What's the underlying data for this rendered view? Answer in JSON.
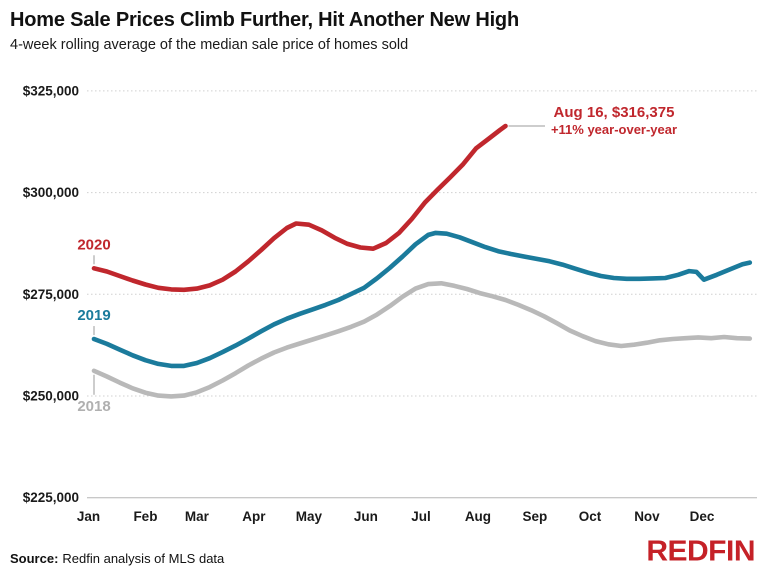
{
  "chart_data": {
    "type": "line",
    "title": "Home Sale Prices Climb Further, Hit Another New High",
    "subtitle": "4-week rolling average of the median sale price of homes sold",
    "x_unit": "day_of_year",
    "x_axis": {
      "labels": [
        "Jan",
        "Feb",
        "Mar",
        "Apr",
        "May",
        "Jun",
        "Jul",
        "Aug",
        "Sep",
        "Oct",
        "Nov",
        "Dec"
      ]
    },
    "y_axis": {
      "min": 225000,
      "max": 325000,
      "baseline": 225000,
      "ticks": [
        {
          "value": 225000,
          "label": "$225,000"
        },
        {
          "value": 250000,
          "label": "$250,000"
        },
        {
          "value": 275000,
          "label": "$275,000"
        },
        {
          "value": 300000,
          "label": "$300,000"
        },
        {
          "value": 325000,
          "label": "$325,000"
        }
      ],
      "grid_color": "#d0d0d0",
      "axis_color": "#b5b5b5"
    },
    "legend_position": "inline-left-of-lines",
    "annotation": {
      "line1": "Aug 16, $316,375",
      "line2": "+11% year-over-year",
      "color": "#c0272d"
    },
    "series": [
      {
        "name": "2020",
        "color": "#c0272d",
        "label_color": "#c0272d",
        "label_position": "above",
        "points": [
          [
            4,
            281400
          ],
          [
            11,
            280600
          ],
          [
            18,
            279500
          ],
          [
            25,
            278400
          ],
          [
            32,
            277400
          ],
          [
            39,
            276600
          ],
          [
            46,
            276200
          ],
          [
            53,
            276100
          ],
          [
            60,
            276400
          ],
          [
            67,
            277200
          ],
          [
            74,
            278600
          ],
          [
            81,
            280600
          ],
          [
            88,
            283100
          ],
          [
            95,
            285900
          ],
          [
            102,
            288800
          ],
          [
            109,
            291300
          ],
          [
            114,
            292400
          ],
          [
            121,
            292100
          ],
          [
            128,
            290700
          ],
          [
            135,
            288900
          ],
          [
            142,
            287400
          ],
          [
            149,
            286500
          ],
          [
            156,
            286200
          ],
          [
            163,
            287600
          ],
          [
            170,
            290100
          ],
          [
            177,
            293500
          ],
          [
            184,
            297500
          ],
          [
            191,
            300700
          ],
          [
            198,
            303800
          ],
          [
            205,
            307000
          ],
          [
            212,
            310900
          ],
          [
            219,
            313300
          ],
          [
            225,
            315400
          ],
          [
            228,
            316375
          ]
        ]
      },
      {
        "name": "2019",
        "color": "#1b7b9c",
        "label_color": "#1b7b9c",
        "label_position": "above",
        "points": [
          [
            4,
            264000
          ],
          [
            11,
            262800
          ],
          [
            18,
            261400
          ],
          [
            25,
            260000
          ],
          [
            32,
            258800
          ],
          [
            39,
            257900
          ],
          [
            46,
            257400
          ],
          [
            53,
            257400
          ],
          [
            60,
            258100
          ],
          [
            67,
            259300
          ],
          [
            74,
            260800
          ],
          [
            81,
            262400
          ],
          [
            88,
            264100
          ],
          [
            95,
            265900
          ],
          [
            102,
            267600
          ],
          [
            109,
            269000
          ],
          [
            116,
            270200
          ],
          [
            123,
            271300
          ],
          [
            130,
            272400
          ],
          [
            137,
            273600
          ],
          [
            144,
            275100
          ],
          [
            151,
            276600
          ],
          [
            158,
            278900
          ],
          [
            165,
            281500
          ],
          [
            172,
            284300
          ],
          [
            179,
            287300
          ],
          [
            186,
            289600
          ],
          [
            190,
            290100
          ],
          [
            196,
            289900
          ],
          [
            203,
            289000
          ],
          [
            210,
            287800
          ],
          [
            217,
            286600
          ],
          [
            224,
            285600
          ],
          [
            231,
            284900
          ],
          [
            238,
            284300
          ],
          [
            245,
            283700
          ],
          [
            252,
            283100
          ],
          [
            259,
            282300
          ],
          [
            266,
            281300
          ],
          [
            273,
            280300
          ],
          [
            280,
            279500
          ],
          [
            287,
            279000
          ],
          [
            294,
            278800
          ],
          [
            301,
            278800
          ],
          [
            308,
            278900
          ],
          [
            315,
            279000
          ],
          [
            322,
            279800
          ],
          [
            328,
            280700
          ],
          [
            332,
            280500
          ],
          [
            336,
            278600
          ],
          [
            343,
            279800
          ],
          [
            350,
            281100
          ],
          [
            357,
            282400
          ],
          [
            361,
            282800
          ]
        ]
      },
      {
        "name": "2018",
        "color": "#b9b9b9",
        "label_color": "#b0b0b0",
        "label_position": "below",
        "points": [
          [
            4,
            256200
          ],
          [
            11,
            254800
          ],
          [
            18,
            253300
          ],
          [
            25,
            251900
          ],
          [
            32,
            250800
          ],
          [
            39,
            250100
          ],
          [
            46,
            249900
          ],
          [
            53,
            250100
          ],
          [
            60,
            250900
          ],
          [
            67,
            252200
          ],
          [
            74,
            253800
          ],
          [
            81,
            255600
          ],
          [
            88,
            257500
          ],
          [
            95,
            259200
          ],
          [
            102,
            260700
          ],
          [
            109,
            261900
          ],
          [
            116,
            262900
          ],
          [
            123,
            263900
          ],
          [
            130,
            264900
          ],
          [
            137,
            265900
          ],
          [
            144,
            267000
          ],
          [
            151,
            268300
          ],
          [
            158,
            270000
          ],
          [
            165,
            272100
          ],
          [
            172,
            274400
          ],
          [
            179,
            276400
          ],
          [
            186,
            277500
          ],
          [
            193,
            277700
          ],
          [
            200,
            277100
          ],
          [
            207,
            276300
          ],
          [
            214,
            275300
          ],
          [
            221,
            274500
          ],
          [
            228,
            273600
          ],
          [
            235,
            272400
          ],
          [
            242,
            271100
          ],
          [
            249,
            269600
          ],
          [
            256,
            267900
          ],
          [
            263,
            266100
          ],
          [
            270,
            264700
          ],
          [
            277,
            263500
          ],
          [
            284,
            262700
          ],
          [
            291,
            262300
          ],
          [
            298,
            262600
          ],
          [
            305,
            263100
          ],
          [
            312,
            263700
          ],
          [
            319,
            264000
          ],
          [
            326,
            264200
          ],
          [
            333,
            264400
          ],
          [
            340,
            264200
          ],
          [
            347,
            264500
          ],
          [
            354,
            264200
          ],
          [
            361,
            264100
          ]
        ]
      }
    ]
  },
  "footer": {
    "source_label": "Source:",
    "source_text": "Redfin analysis of MLS data",
    "logo": "REDFIN"
  }
}
